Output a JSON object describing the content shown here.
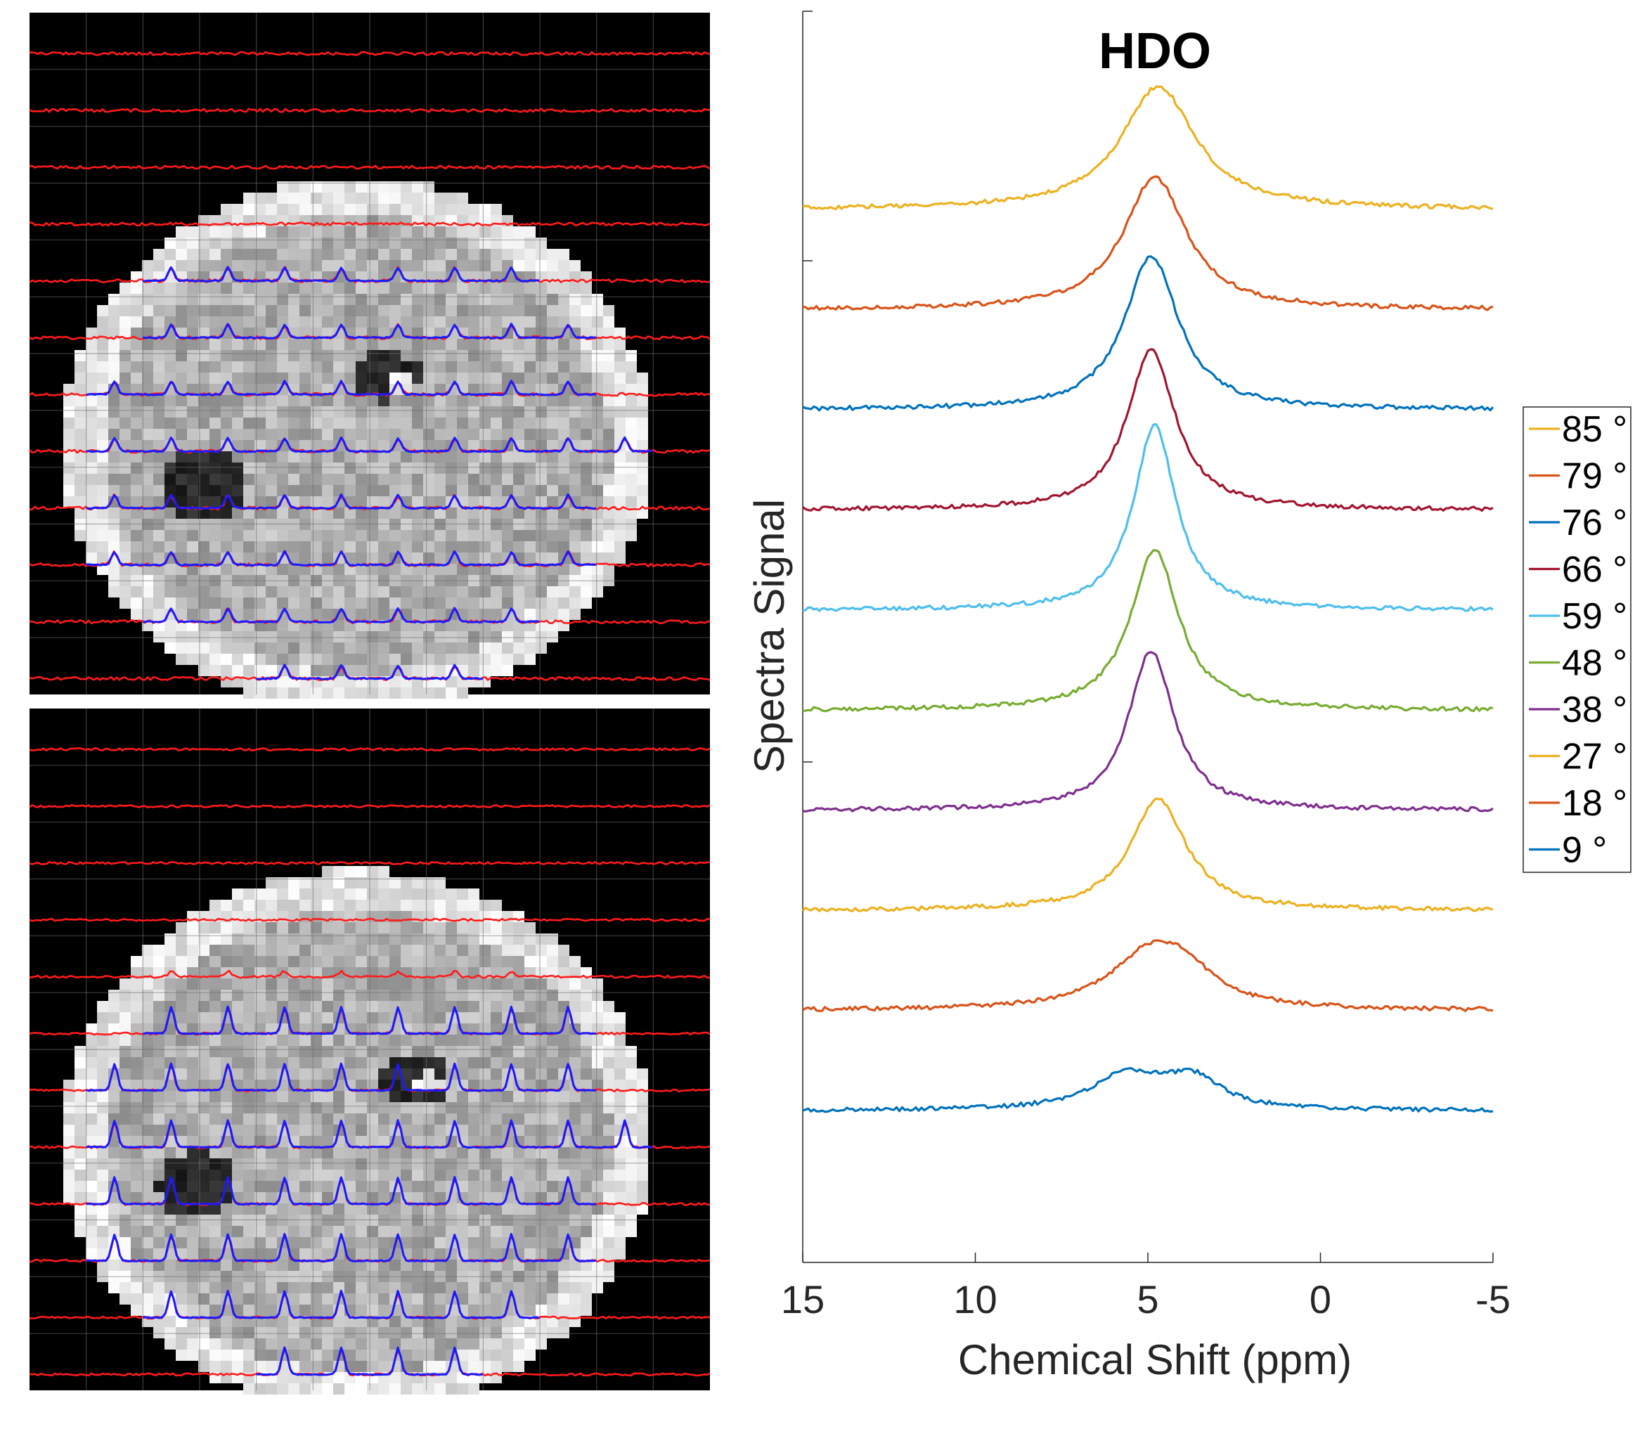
{
  "chart_data": [
    {
      "type": "image-grid",
      "panel": "top-left",
      "description_shown": "MR image with spectral grid overlay (red / blue spectra)",
      "grid_rows": 12,
      "grid_cols": 12
    },
    {
      "type": "image-grid",
      "panel": "bottom-left",
      "grid_rows": 12,
      "grid_cols": 12
    },
    {
      "type": "line",
      "title": "HDO",
      "xlabel": "Chemical Shift (ppm)",
      "ylabel": "Spectra Signal",
      "xlim": [
        15,
        -5
      ],
      "x_reversed": true,
      "x_ticks": [
        15,
        10,
        5,
        0,
        -5
      ],
      "x_tick_labels": [
        "15",
        "10",
        "5",
        "0",
        "-5"
      ],
      "y_ticks_unlabeled": 3,
      "legend_placement": "right",
      "stacked_offset": true,
      "series": [
        {
          "name": "85 °",
          "color": "#EDB120",
          "peak_ppm": 4.7,
          "peak_height": 1.0,
          "width": 1.3,
          "baseline_slope": 0.0
        },
        {
          "name": "79 °",
          "color": "#D95319",
          "peak_ppm": 4.8,
          "peak_height": 1.08,
          "width": 1.1,
          "baseline_slope": 0.0
        },
        {
          "name": "76 °",
          "color": "#0072BD",
          "peak_ppm": 4.9,
          "peak_height": 1.25,
          "width": 0.95,
          "baseline_slope": 0.0
        },
        {
          "name": "66 °",
          "color": "#A2142F",
          "peak_ppm": 4.9,
          "peak_height": 1.3,
          "width": 0.85,
          "baseline_slope": 0.0
        },
        {
          "name": "59 °",
          "color": "#4DBEEE",
          "peak_ppm": 4.8,
          "peak_height": 1.5,
          "width": 0.75,
          "baseline_slope": 0.0
        },
        {
          "name": "48 °",
          "color": "#77AC30",
          "peak_ppm": 4.8,
          "peak_height": 1.3,
          "width": 0.85,
          "baseline_slope": 0.0
        },
        {
          "name": "38 °",
          "color": "#7E2F8E",
          "peak_ppm": 4.9,
          "peak_height": 1.3,
          "width": 0.8,
          "baseline_slope": 0.0
        },
        {
          "name": "27 °",
          "color": "#EDB120",
          "peak_ppm": 4.7,
          "peak_height": 0.9,
          "width": 1.0,
          "baseline_slope": 0.0
        },
        {
          "name": "18 °",
          "color": "#D95319",
          "peak_ppm": 4.8,
          "peak_height": 0.52,
          "width": 1.5,
          "baseline_slope": 0.0
        },
        {
          "name": "9 °",
          "color": "#0072BD",
          "peak_ppm": 5.2,
          "peak_height": 0.4,
          "width": 2.5,
          "baseline_slope": 0.0
        }
      ]
    }
  ]
}
